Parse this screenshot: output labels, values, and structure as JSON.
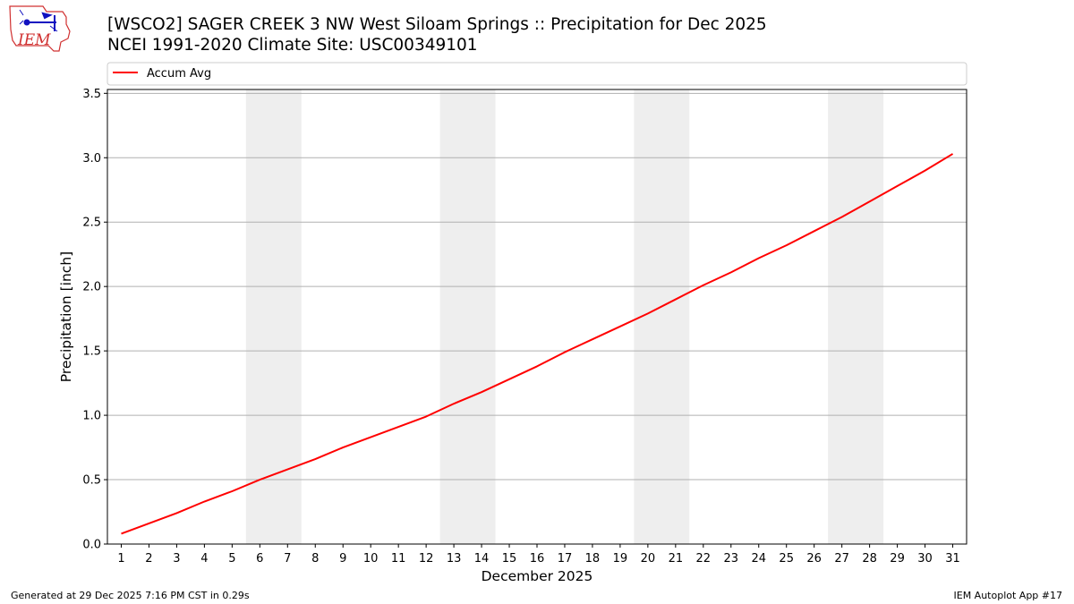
{
  "header": {
    "title_line1": "[WSCO2] SAGER CREEK 3 NW West Siloam Springs :: Precipitation for Dec 2025",
    "title_line2": "NCEI 1991-2020 Climate Site: USC00349101"
  },
  "logo": {
    "text": "IEM",
    "icon": "iem-logo-icon"
  },
  "footer": {
    "left": "Generated at 29 Dec 2025 7:16 PM CST in 0.29s",
    "right": "IEM Autoplot App #17"
  },
  "colors": {
    "line": "#ff0000",
    "weekend_band": "#eeeeee",
    "grid": "#b0b0b0",
    "logo": "#d03030"
  },
  "chart_data": {
    "type": "line",
    "xlabel": "December 2025",
    "ylabel": "Precipitation [inch]",
    "xlim": [
      0.5,
      31.5
    ],
    "ylim": [
      0,
      3.53
    ],
    "yticks": [
      0.0,
      0.5,
      1.0,
      1.5,
      2.0,
      2.5,
      3.0,
      3.5
    ],
    "ytick_labels": [
      "0.0",
      "0.5",
      "1.0",
      "1.5",
      "2.0",
      "2.5",
      "3.0",
      "3.5"
    ],
    "grid": "y",
    "legend": {
      "placement": "top",
      "entries": [
        "Accum Avg"
      ]
    },
    "weekend_bands": [
      [
        6,
        7
      ],
      [
        13,
        14
      ],
      [
        20,
        21
      ],
      [
        27,
        28
      ]
    ],
    "x": [
      1,
      2,
      3,
      4,
      5,
      6,
      7,
      8,
      9,
      10,
      11,
      12,
      13,
      14,
      15,
      16,
      17,
      18,
      19,
      20,
      21,
      22,
      23,
      24,
      25,
      26,
      27,
      28,
      29,
      30,
      31
    ],
    "series": [
      {
        "name": "Accum Avg",
        "values": [
          0.08,
          0.16,
          0.24,
          0.33,
          0.41,
          0.5,
          0.58,
          0.66,
          0.75,
          0.83,
          0.91,
          0.99,
          1.09,
          1.18,
          1.28,
          1.38,
          1.49,
          1.59,
          1.69,
          1.79,
          1.9,
          2.01,
          2.11,
          2.22,
          2.32,
          2.43,
          2.54,
          2.66,
          2.78,
          2.9,
          3.03
        ]
      }
    ]
  }
}
